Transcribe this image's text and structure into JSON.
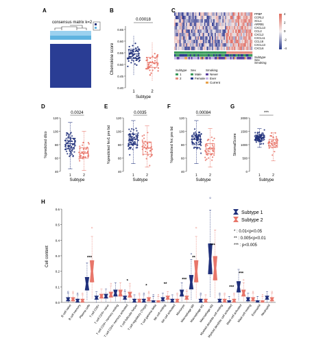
{
  "colors": {
    "subtype1": "#1f2f7a",
    "subtype2": "#e8766a",
    "heat_blue": "#2b3c8f",
    "heat_red": "#e06a5c",
    "heat_white": "#f3eaea",
    "sex_green": "#3a9a5b",
    "never": "#5b3fa0",
    "ever": "#c7b6e6",
    "current": "#e7a14b"
  },
  "panels": {
    "A": {
      "letter": "A",
      "title": "consensus matrix k=2",
      "legend": [
        "1",
        "2"
      ]
    },
    "B": {
      "letter": "B",
      "pvalue": "0.00018",
      "ylabel": "Chemokine score",
      "xlabel": "Subtype",
      "yticks": [
        "0.40",
        "0.45",
        "0.50",
        "0.55",
        "0.60",
        "0.65"
      ],
      "xticks": [
        "1",
        "2"
      ]
    },
    "C": {
      "letter": "C",
      "genes": [
        "PPBP",
        "CCRL2",
        "XCL1",
        "ARRB1",
        "CXCL13",
        "CCL2",
        "CXCL2",
        "CXCL11",
        "CCL18",
        "CXCL13",
        "CXCL6"
      ],
      "colorbar": [
        "4",
        "2",
        "0",
        "-2",
        "-4"
      ],
      "annotation_labels": [
        "Subtype",
        "Sex",
        "Smoking"
      ],
      "legend_headers": [
        "Subtype",
        "Sex",
        "Smoking"
      ],
      "legend_subtype": [
        "1",
        "2"
      ],
      "legend_sex": [
        "Male",
        "Female"
      ],
      "legend_smoking": [
        "Never",
        "Ever",
        "Current"
      ]
    },
    "D": {
      "letter": "D",
      "pvalue": "0.0024",
      "ylabel": "%predicted dlco",
      "xlabel": "Subtype",
      "yticks": [
        "40",
        "60",
        "80",
        "100",
        "120"
      ],
      "xticks": [
        "1",
        "2"
      ]
    },
    "E": {
      "letter": "E",
      "pvalue": "0.0035",
      "ylabel": "%predicted fev1 pre bd",
      "xlabel": "Subtype",
      "yticks": [
        "40",
        "60",
        "80",
        "100",
        "120"
      ],
      "xticks": [
        "1",
        "2"
      ]
    },
    "F": {
      "letter": "F",
      "pvalue": "0.00084",
      "ylabel": "%predicted fvc pre bd",
      "xlabel": "Subtype",
      "yticks": [
        "40",
        "60",
        "80",
        "100",
        "120"
      ],
      "xticks": [
        "1",
        "2"
      ]
    },
    "G": {
      "letter": "G",
      "pvalue": "***",
      "ylabel": "StromalScore",
      "xlabel": "Subtype",
      "yticks": [
        "0",
        "500",
        "1000",
        "1500",
        "2000"
      ],
      "xticks": [
        "1",
        "2"
      ]
    },
    "H": {
      "letter": "H",
      "ylabel": "Cell content",
      "yticks": [
        "0.0",
        "0.1",
        "0.2",
        "0.3",
        "0.4",
        "0.5",
        "0.6"
      ],
      "legend": [
        "Subtype 1",
        "Subtype 2"
      ],
      "sig_key": [
        "*  : 0.01<p<0.05",
        "**  : 0.005<p<0.01",
        "***  : p<0.005"
      ]
    }
  },
  "chart_data": {
    "type": "boxplot",
    "ylabel": "Cell content",
    "ylim": [
      0,
      0.6
    ],
    "legend": [
      "Subtype 1",
      "Subtype 2"
    ],
    "categories": [
      "B cell naive",
      "B cell memory",
      "Plasma cells",
      "T cell CD8+",
      "T cell CD4+ naive",
      "T cell CD4+ memory resting",
      "T cell CD4+ memory activated",
      "T cell follicular helper",
      "T cell regulatory (Tregs)",
      "T cell gamma delta",
      "NK cell resting",
      "NK cell activated",
      "Monocyte",
      "Macrophage M0",
      "Macrophage M1",
      "Macrophage M2",
      "Myeloid dendritic cell resting",
      "Myeloid dendritic cell activated",
      "Mast cell activated",
      "Mast cell resting",
      "Eosinophil",
      "Neutrophil"
    ],
    "significance": [
      "",
      "",
      "***",
      "",
      "",
      "",
      "*",
      "",
      "*",
      "",
      "**",
      "",
      "***",
      "**",
      "",
      "***",
      "",
      "***",
      "***",
      "",
      "",
      ""
    ],
    "series": [
      {
        "name": "Subtype 1",
        "medians": [
          0.02,
          0.01,
          0.12,
          0.03,
          0.04,
          0.06,
          0.03,
          0.01,
          0.01,
          0.0,
          0.02,
          0.01,
          0.06,
          0.13,
          0.01,
          0.28,
          0.01,
          0.0,
          0.1,
          0.02,
          0.0,
          0.03
        ]
      },
      {
        "name": "Subtype 2",
        "medians": [
          0.02,
          0.01,
          0.2,
          0.04,
          0.05,
          0.06,
          0.05,
          0.01,
          0.02,
          0.0,
          0.03,
          0.01,
          0.03,
          0.2,
          0.01,
          0.22,
          0.01,
          0.01,
          0.06,
          0.02,
          0.0,
          0.02
        ]
      }
    ]
  }
}
